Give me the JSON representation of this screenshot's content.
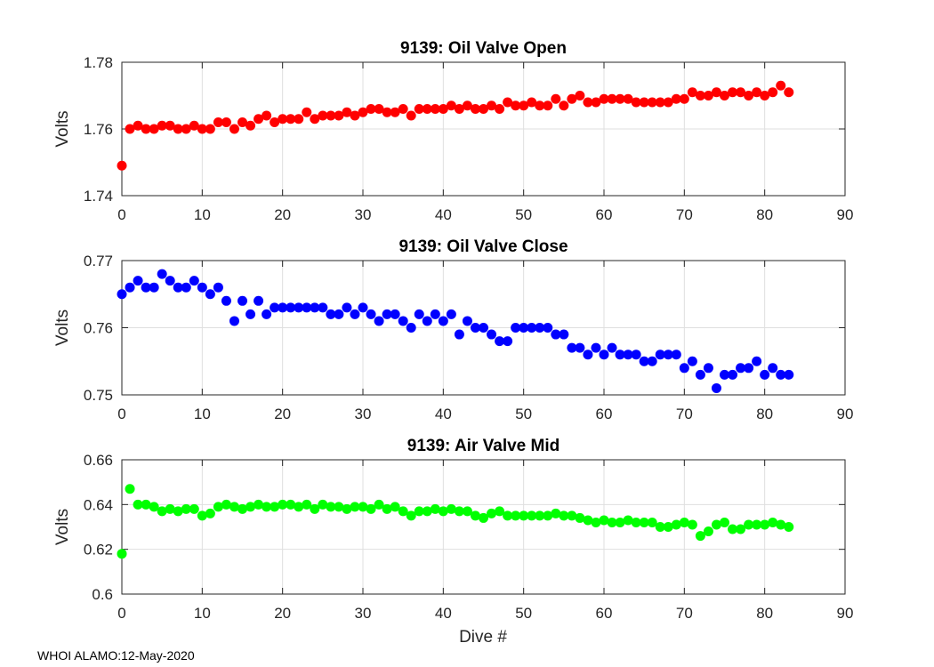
{
  "footer": "WHOI ALAMO:12-May-2020",
  "xlabel": "Dive #",
  "chart_data": [
    {
      "type": "scatter",
      "title": "9139: Oil Valve Open",
      "ylabel": "Volts",
      "color": "#ff0000",
      "xlim": [
        0,
        90
      ],
      "ylim": [
        1.74,
        1.78
      ],
      "xticks": [
        0,
        10,
        20,
        30,
        40,
        50,
        60,
        70,
        80,
        90
      ],
      "yticks": [
        1.74,
        1.76,
        1.78
      ],
      "ytick_labels": [
        "1.74",
        "1.76",
        "1.78"
      ],
      "grid": true,
      "x": [
        0,
        1,
        2,
        3,
        4,
        5,
        6,
        7,
        8,
        9,
        10,
        11,
        12,
        13,
        14,
        15,
        16,
        17,
        18,
        19,
        20,
        21,
        22,
        23,
        24,
        25,
        26,
        27,
        28,
        29,
        30,
        31,
        32,
        33,
        34,
        35,
        36,
        37,
        38,
        39,
        40,
        41,
        42,
        43,
        44,
        45,
        46,
        47,
        48,
        49,
        50,
        51,
        52,
        53,
        54,
        55,
        56,
        57,
        58,
        59,
        60,
        61,
        62,
        63,
        64,
        65,
        66,
        67,
        68,
        69,
        70,
        71,
        72,
        73,
        74,
        75,
        76,
        77,
        78,
        79,
        80,
        81,
        82,
        83
      ],
      "y": [
        1.749,
        1.76,
        1.761,
        1.76,
        1.76,
        1.761,
        1.761,
        1.76,
        1.76,
        1.761,
        1.76,
        1.76,
        1.762,
        1.762,
        1.76,
        1.762,
        1.761,
        1.763,
        1.764,
        1.762,
        1.763,
        1.763,
        1.763,
        1.765,
        1.763,
        1.764,
        1.764,
        1.764,
        1.765,
        1.764,
        1.765,
        1.766,
        1.766,
        1.765,
        1.765,
        1.766,
        1.764,
        1.766,
        1.766,
        1.766,
        1.766,
        1.767,
        1.766,
        1.767,
        1.766,
        1.766,
        1.767,
        1.766,
        1.768,
        1.767,
        1.767,
        1.768,
        1.767,
        1.767,
        1.769,
        1.767,
        1.769,
        1.77,
        1.768,
        1.768,
        1.769,
        1.769,
        1.769,
        1.769,
        1.768,
        1.768,
        1.768,
        1.768,
        1.768,
        1.769,
        1.769,
        1.771,
        1.77,
        1.77,
        1.771,
        1.77,
        1.771,
        1.771,
        1.77,
        1.771,
        1.77,
        1.771,
        1.773,
        1.771
      ]
    },
    {
      "type": "scatter",
      "title": "9139: Oil Valve Close",
      "ylabel": "Volts",
      "color": "#0000ff",
      "xlim": [
        0,
        90
      ],
      "ylim": [
        0.75,
        0.77
      ],
      "xticks": [
        0,
        10,
        20,
        30,
        40,
        50,
        60,
        70,
        80,
        90
      ],
      "yticks": [
        0.75,
        0.76,
        0.77
      ],
      "ytick_labels": [
        "0.75",
        "0.76",
        "0.77"
      ],
      "grid": true,
      "x": [
        0,
        1,
        2,
        3,
        4,
        5,
        6,
        7,
        8,
        9,
        10,
        11,
        12,
        13,
        14,
        15,
        16,
        17,
        18,
        19,
        20,
        21,
        22,
        23,
        24,
        25,
        26,
        27,
        28,
        29,
        30,
        31,
        32,
        33,
        34,
        35,
        36,
        37,
        38,
        39,
        40,
        41,
        42,
        43,
        44,
        45,
        46,
        47,
        48,
        49,
        50,
        51,
        52,
        53,
        54,
        55,
        56,
        57,
        58,
        59,
        60,
        61,
        62,
        63,
        64,
        65,
        66,
        67,
        68,
        69,
        70,
        71,
        72,
        73,
        74,
        75,
        76,
        77,
        78,
        79,
        80,
        81,
        82,
        83
      ],
      "y": [
        0.765,
        0.766,
        0.767,
        0.766,
        0.766,
        0.768,
        0.767,
        0.766,
        0.766,
        0.767,
        0.766,
        0.765,
        0.766,
        0.764,
        0.761,
        0.764,
        0.762,
        0.764,
        0.762,
        0.763,
        0.763,
        0.763,
        0.763,
        0.763,
        0.763,
        0.763,
        0.762,
        0.762,
        0.763,
        0.762,
        0.763,
        0.762,
        0.761,
        0.762,
        0.762,
        0.761,
        0.76,
        0.762,
        0.761,
        0.762,
        0.761,
        0.762,
        0.759,
        0.761,
        0.76,
        0.76,
        0.759,
        0.758,
        0.758,
        0.76,
        0.76,
        0.76,
        0.76,
        0.76,
        0.759,
        0.759,
        0.757,
        0.757,
        0.756,
        0.757,
        0.756,
        0.757,
        0.756,
        0.756,
        0.756,
        0.755,
        0.755,
        0.756,
        0.756,
        0.756,
        0.754,
        0.755,
        0.753,
        0.754,
        0.751,
        0.753,
        0.753,
        0.754,
        0.754,
        0.755,
        0.753,
        0.754,
        0.753,
        0.753
      ]
    },
    {
      "type": "scatter",
      "title": "9139: Air Valve Mid",
      "ylabel": "Volts",
      "color": "#00ff00",
      "xlim": [
        0,
        90
      ],
      "ylim": [
        0.6,
        0.66
      ],
      "xticks": [
        0,
        10,
        20,
        30,
        40,
        50,
        60,
        70,
        80,
        90
      ],
      "yticks": [
        0.6,
        0.62,
        0.64,
        0.66
      ],
      "ytick_labels": [
        "0.6",
        "0.62",
        "0.64",
        "0.66"
      ],
      "grid": true,
      "x": [
        0,
        1,
        2,
        3,
        4,
        5,
        6,
        7,
        8,
        9,
        10,
        11,
        12,
        13,
        14,
        15,
        16,
        17,
        18,
        19,
        20,
        21,
        22,
        23,
        24,
        25,
        26,
        27,
        28,
        29,
        30,
        31,
        32,
        33,
        34,
        35,
        36,
        37,
        38,
        39,
        40,
        41,
        42,
        43,
        44,
        45,
        46,
        47,
        48,
        49,
        50,
        51,
        52,
        53,
        54,
        55,
        56,
        57,
        58,
        59,
        60,
        61,
        62,
        63,
        64,
        65,
        66,
        67,
        68,
        69,
        70,
        71,
        72,
        73,
        74,
        75,
        76,
        77,
        78,
        79,
        80,
        81,
        82,
        83
      ],
      "y": [
        0.618,
        0.647,
        0.64,
        0.64,
        0.639,
        0.637,
        0.638,
        0.637,
        0.638,
        0.638,
        0.635,
        0.636,
        0.639,
        0.64,
        0.639,
        0.638,
        0.639,
        0.64,
        0.639,
        0.639,
        0.64,
        0.64,
        0.639,
        0.64,
        0.638,
        0.64,
        0.639,
        0.639,
        0.638,
        0.639,
        0.639,
        0.638,
        0.64,
        0.638,
        0.639,
        0.637,
        0.635,
        0.637,
        0.637,
        0.638,
        0.637,
        0.638,
        0.637,
        0.637,
        0.635,
        0.634,
        0.636,
        0.637,
        0.635,
        0.635,
        0.635,
        0.635,
        0.635,
        0.635,
        0.636,
        0.635,
        0.635,
        0.634,
        0.633,
        0.632,
        0.633,
        0.632,
        0.632,
        0.633,
        0.632,
        0.632,
        0.632,
        0.63,
        0.63,
        0.631,
        0.632,
        0.631,
        0.626,
        0.628,
        0.631,
        0.632,
        0.629,
        0.629,
        0.631,
        0.631,
        0.631,
        0.632,
        0.631,
        0.63
      ]
    }
  ]
}
